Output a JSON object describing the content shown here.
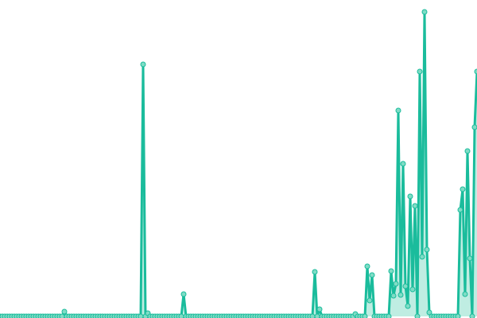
{
  "chart_data": {
    "type": "line",
    "title": "",
    "xlabel": "",
    "ylabel": "",
    "grid": false,
    "legend": "none",
    "axes_visible": false,
    "markers": true,
    "area_fill": true,
    "ylim": [
      0,
      398
    ],
    "colors": {
      "line": "#1abc9c",
      "marker_fill": "#7fdcc5",
      "area": "#7fdcc5"
    },
    "series": [
      {
        "values": [
          0,
          0,
          0,
          0,
          0,
          0,
          0,
          0,
          0,
          0,
          0,
          0,
          0,
          0,
          0,
          0,
          0,
          0,
          0,
          0,
          0,
          0,
          0,
          0,
          0,
          0,
          0,
          6,
          0,
          0,
          0,
          0,
          0,
          0,
          0,
          0,
          0,
          0,
          0,
          0,
          0,
          0,
          0,
          0,
          0,
          0,
          0,
          0,
          0,
          0,
          0,
          0,
          0,
          0,
          0,
          0,
          0,
          0,
          0,
          0,
          317,
          0,
          4,
          0,
          0,
          0,
          0,
          0,
          0,
          0,
          0,
          0,
          0,
          0,
          0,
          0,
          0,
          28,
          0,
          0,
          0,
          0,
          0,
          0,
          0,
          0,
          0,
          0,
          0,
          0,
          0,
          0,
          0,
          0,
          0,
          0,
          0,
          0,
          0,
          0,
          0,
          0,
          0,
          0,
          0,
          0,
          0,
          0,
          0,
          0,
          0,
          0,
          0,
          0,
          0,
          0,
          0,
          0,
          0,
          0,
          0,
          0,
          0,
          0,
          0,
          0,
          0,
          0,
          0,
          0,
          0,
          0,
          56,
          0,
          9,
          0,
          0,
          0,
          0,
          0,
          0,
          0,
          0,
          0,
          0,
          0,
          0,
          0,
          0,
          3,
          0,
          0,
          0,
          0,
          63,
          20,
          52,
          0,
          0,
          0,
          0,
          0,
          0,
          0,
          57,
          26,
          41,
          259,
          27,
          192,
          38,
          13,
          151,
          34,
          139,
          0,
          308,
          75,
          383,
          84,
          5,
          0,
          0,
          0,
          0,
          0,
          0,
          0,
          0,
          0,
          0,
          0,
          0,
          134,
          160,
          28,
          208,
          73,
          0,
          238,
          308
        ]
      }
    ]
  }
}
